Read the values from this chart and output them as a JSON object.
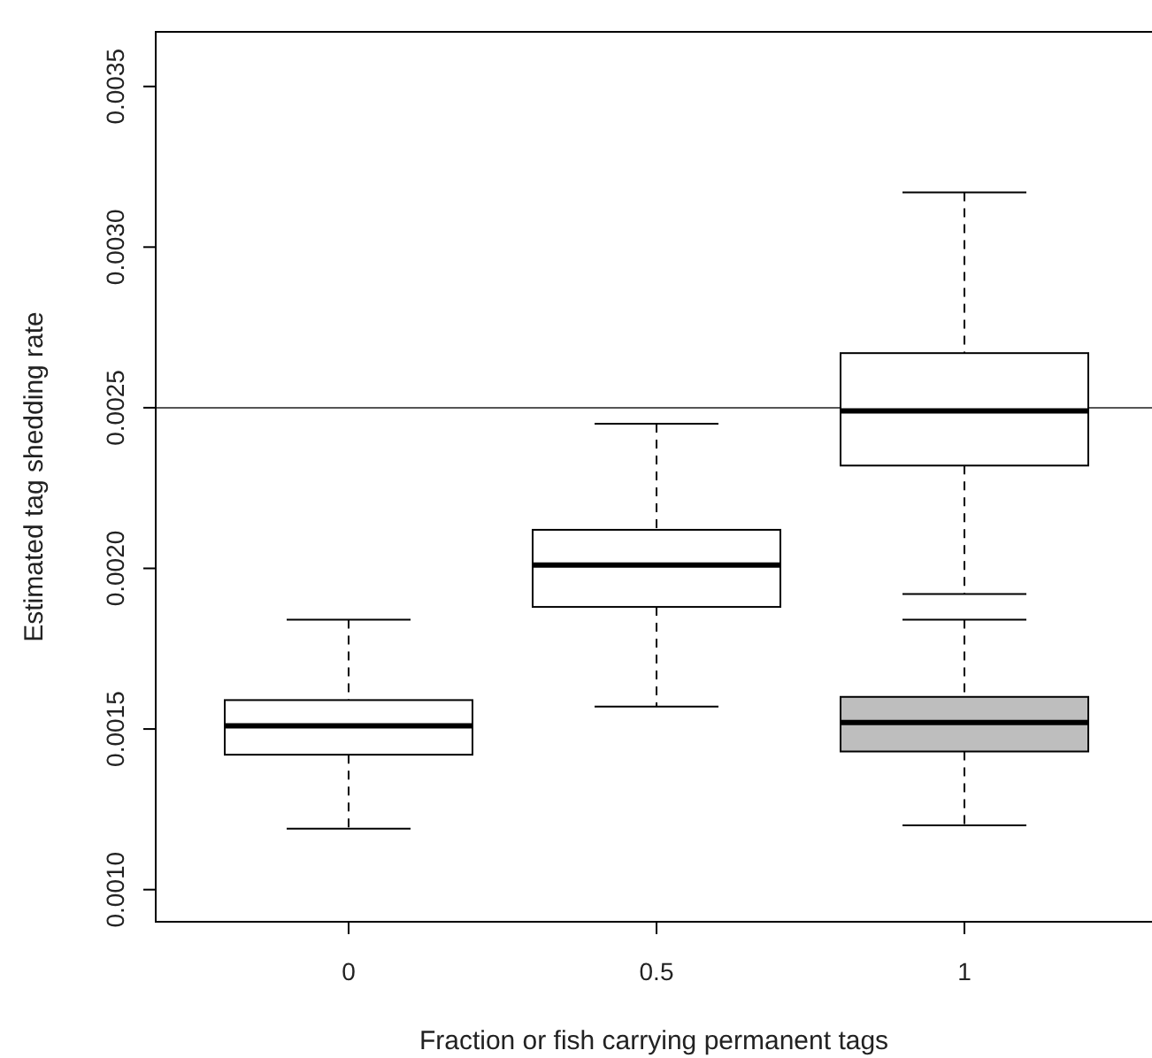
{
  "chart_data": {
    "type": "box",
    "xlabel": "Fraction or fish carrying permanent tags",
    "ylabel": "Estimated tag shedding rate",
    "categories": [
      "0",
      "0.5",
      "1"
    ],
    "series": [
      {
        "color": "#ffffff",
        "boxes": [
          {
            "low": 0.00119,
            "q1": 0.00142,
            "median": 0.00151,
            "q3": 0.00159,
            "high": 0.00184
          },
          {
            "low": 0.00157,
            "q1": 0.00188,
            "median": 0.00201,
            "q3": 0.00212,
            "high": 0.00245
          },
          {
            "low": 0.00192,
            "q1": 0.00232,
            "median": 0.00249,
            "q3": 0.00267,
            "high": 0.00317
          }
        ]
      },
      {
        "color": "#bebebe",
        "boxes": [
          null,
          null,
          {
            "low": 0.0012,
            "q1": 0.00143,
            "median": 0.00152,
            "q3": 0.0016,
            "high": 0.00184
          }
        ]
      }
    ],
    "ylim": [
      0.0009,
      0.00367
    ],
    "yticks": [
      {
        "value": 0.001,
        "label": "0.0010"
      },
      {
        "value": 0.0015,
        "label": "0.0015"
      },
      {
        "value": 0.002,
        "label": "0.0020"
      },
      {
        "value": 0.0025,
        "label": "0.0025"
      },
      {
        "value": 0.003,
        "label": "0.0030"
      },
      {
        "value": 0.0035,
        "label": "0.0035"
      }
    ],
    "ref_lines": [
      {
        "axis": "y",
        "value": 0.0025,
        "color": "#555555"
      }
    ],
    "grid": false
  }
}
